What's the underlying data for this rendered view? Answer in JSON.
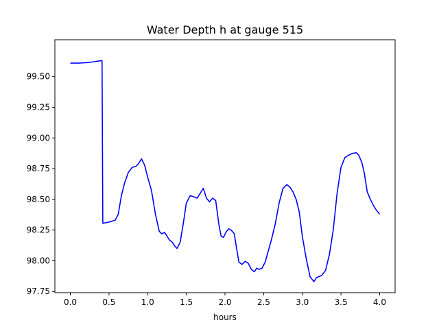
{
  "chart_data": {
    "type": "line",
    "title": "Water Depth h at gauge 515",
    "xlabel": "hours",
    "ylabel": "",
    "xlim": [
      -0.2,
      4.2
    ],
    "ylim": [
      97.74,
      99.8
    ],
    "xticks": [
      0.0,
      0.5,
      1.0,
      1.5,
      2.0,
      2.5,
      3.0,
      3.5,
      4.0
    ],
    "xtick_labels": [
      "0.0",
      "0.5",
      "1.0",
      "1.5",
      "2.0",
      "2.5",
      "3.0",
      "3.5",
      "4.0"
    ],
    "yticks": [
      97.75,
      98.0,
      98.25,
      98.5,
      98.75,
      99.0,
      99.25,
      99.5
    ],
    "ytick_labels": [
      "97.75",
      "98.00",
      "98.25",
      "98.50",
      "98.75",
      "99.00",
      "99.25",
      "99.50"
    ],
    "grid": false,
    "series": [
      {
        "color": "#0000ff",
        "x": [
          0.0,
          0.1,
          0.2,
          0.3,
          0.35,
          0.4,
          0.41,
          0.42,
          0.5,
          0.58,
          0.62,
          0.66,
          0.7,
          0.75,
          0.8,
          0.85,
          0.88,
          0.92,
          0.96,
          1.0,
          1.05,
          1.1,
          1.15,
          1.18,
          1.22,
          1.25,
          1.28,
          1.32,
          1.35,
          1.38,
          1.42,
          1.46,
          1.5,
          1.55,
          1.6,
          1.64,
          1.68,
          1.72,
          1.76,
          1.8,
          1.84,
          1.88,
          1.92,
          1.95,
          1.98,
          2.02,
          2.05,
          2.08,
          2.12,
          2.15,
          2.18,
          2.22,
          2.26,
          2.3,
          2.34,
          2.38,
          2.41,
          2.44,
          2.48,
          2.52,
          2.56,
          2.6,
          2.65,
          2.7,
          2.75,
          2.8,
          2.84,
          2.88,
          2.92,
          2.96,
          3.0,
          3.05,
          3.1,
          3.15,
          3.18,
          3.21,
          3.25,
          3.3,
          3.35,
          3.4,
          3.45,
          3.5,
          3.55,
          3.6,
          3.65,
          3.7,
          3.73,
          3.77,
          3.8,
          3.84,
          3.88,
          3.92,
          3.96,
          4.0
        ],
        "y": [
          99.61,
          99.61,
          99.613,
          99.62,
          99.625,
          99.63,
          99.63,
          98.305,
          98.315,
          98.33,
          98.38,
          98.53,
          98.63,
          98.72,
          98.76,
          98.77,
          98.79,
          98.83,
          98.78,
          98.68,
          98.57,
          98.38,
          98.24,
          98.22,
          98.23,
          98.2,
          98.17,
          98.15,
          98.12,
          98.1,
          98.15,
          98.3,
          98.47,
          98.53,
          98.52,
          98.51,
          98.55,
          98.59,
          98.51,
          98.48,
          98.51,
          98.49,
          98.3,
          98.2,
          98.19,
          98.24,
          98.26,
          98.25,
          98.22,
          98.1,
          97.99,
          97.97,
          97.995,
          97.98,
          97.93,
          97.91,
          97.94,
          97.93,
          97.94,
          97.99,
          98.08,
          98.17,
          98.3,
          98.47,
          98.59,
          98.62,
          98.6,
          98.56,
          98.5,
          98.4,
          98.2,
          98.02,
          97.87,
          97.83,
          97.86,
          97.87,
          97.88,
          97.92,
          98.05,
          98.25,
          98.55,
          98.76,
          98.84,
          98.86,
          98.875,
          98.88,
          98.86,
          98.8,
          98.72,
          98.56,
          98.5,
          98.45,
          98.41,
          98.38
        ]
      }
    ]
  }
}
